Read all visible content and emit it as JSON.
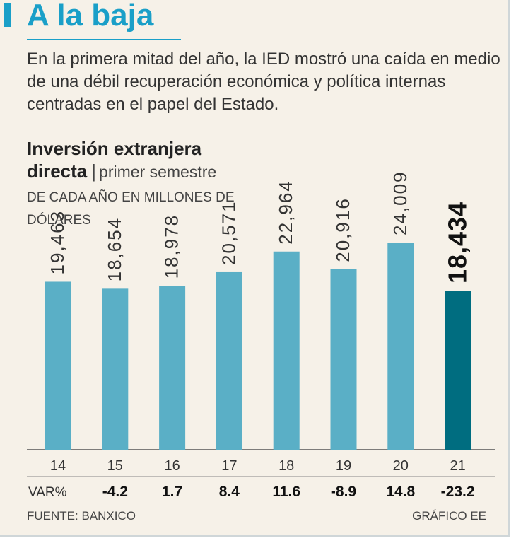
{
  "header": {
    "title": "A la baja",
    "subtitle": "En la primera mitad del año, la IED mostró una caída en medio de una débil recuperación económica y política internas centradas en el papel del Estado."
  },
  "chart_heading": {
    "line1": "Inversión extranjera",
    "line2_bold": "directa",
    "separator": "|",
    "line2_normal": "primer semestre",
    "units": "DE CADA AÑO EN MILLONES DE DÓLARES"
  },
  "chart_data": {
    "type": "bar",
    "title": "Inversión extranjera directa | primer semestre",
    "ylabel": "Millones de dólares",
    "categories": [
      "14",
      "15",
      "16",
      "17",
      "18",
      "19",
      "20",
      "21"
    ],
    "values": [
      19463,
      18654,
      18978,
      20571,
      22964,
      20916,
      24009,
      18434
    ],
    "value_labels": [
      "19,463",
      "18,654",
      "18,978",
      "20,571",
      "22,964",
      "20,916",
      "24,009",
      "18,434"
    ],
    "var_label": "VAR%",
    "var_values": [
      "",
      "-4.2",
      "1.7",
      "8.4",
      "11.6",
      "-8.9",
      "14.8",
      "-23.2"
    ],
    "highlight_index": 7,
    "colors": {
      "bar": "#5aafc6",
      "highlight": "#006d80",
      "axis": "#555555",
      "text": "#333333"
    }
  },
  "footer": {
    "source": "FUENTE: BANXICO",
    "credit": "GRÁFICO EE"
  }
}
